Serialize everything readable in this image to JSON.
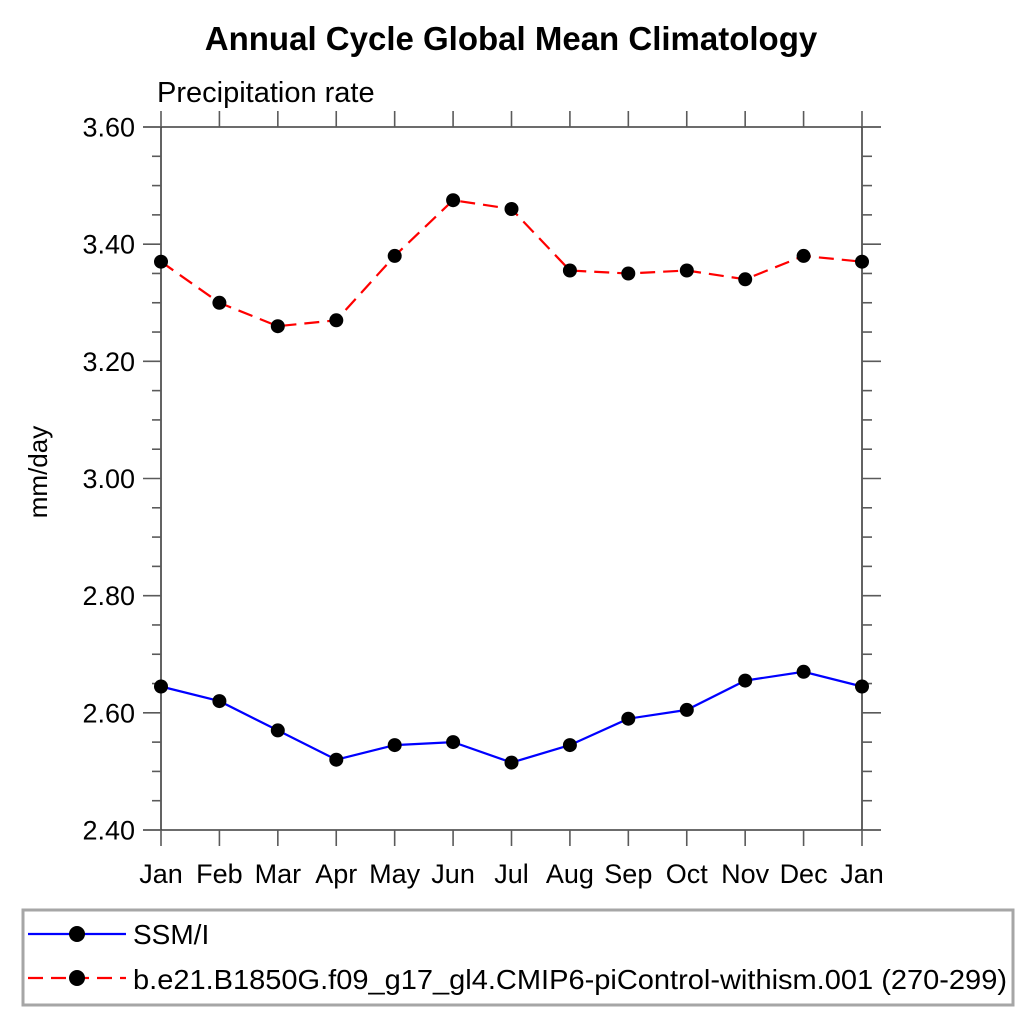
{
  "page": {
    "background": "#ffffff"
  },
  "chart_data": {
    "type": "line",
    "title": "Annual Cycle Global Mean Climatology",
    "subtitle": "Precipitation rate",
    "ylabel": "mm/day",
    "xlabel": "",
    "categories": [
      "Jan",
      "Feb",
      "Mar",
      "Apr",
      "May",
      "Jun",
      "Jul",
      "Aug",
      "Sep",
      "Oct",
      "Nov",
      "Dec",
      "Jan"
    ],
    "ylim": [
      2.4,
      3.6
    ],
    "ytick_major_step": 0.2,
    "ytick_minor_step": 0.05,
    "ytick_labels": [
      "2.40",
      "2.60",
      "2.80",
      "3.00",
      "3.20",
      "3.40",
      "3.60"
    ],
    "grid": false,
    "legend_position": "bottom-left-box",
    "series": [
      {
        "name": "SSM/I",
        "color": "#0000ff",
        "line_style": "solid",
        "marker": "filled-circle",
        "marker_color": "#000000",
        "values": [
          2.645,
          2.62,
          2.57,
          2.52,
          2.545,
          2.55,
          2.515,
          2.545,
          2.59,
          2.605,
          2.655,
          2.67,
          2.645
        ]
      },
      {
        "name": "b.e21.B1850G.f09_g17_gl4.CMIP6-piControl-withism.001 (270-299)",
        "color": "#ff0000",
        "line_style": "dashed",
        "marker": "filled-circle",
        "marker_color": "#000000",
        "values": [
          3.37,
          3.3,
          3.26,
          3.27,
          3.38,
          3.475,
          3.46,
          3.355,
          3.35,
          3.355,
          3.34,
          3.38,
          3.37
        ]
      }
    ]
  },
  "colors": {
    "axis": "#3c3c3c",
    "tick": "#5a5a5a",
    "legend_border": "#a6a6a6",
    "text": "#000000"
  }
}
